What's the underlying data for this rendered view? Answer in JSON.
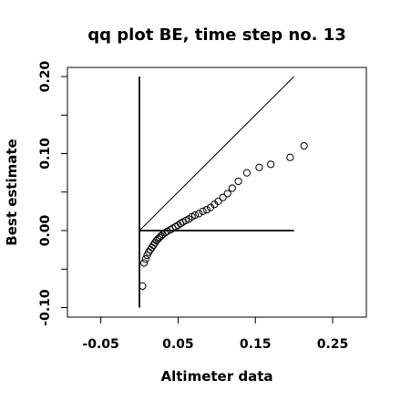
{
  "chart_data": {
    "type": "scatter",
    "title": "qq plot BE, time step no. 13",
    "xlabel": "Altimeter data",
    "ylabel": "Best estimate",
    "xlim": [
      -0.1,
      0.3
    ],
    "ylim": [
      -0.11,
      0.21
    ],
    "x_ticks": [
      -0.05,
      0.05,
      0.15,
      0.25
    ],
    "x_tick_labels": [
      "-0.05",
      "0.05",
      "0.15",
      "0.25"
    ],
    "y_ticks": [
      -0.1,
      0.0,
      0.1,
      0.2
    ],
    "y_tick_labels": [
      "-0.10",
      "0.00",
      "0.10",
      "0.20"
    ],
    "grid": false,
    "legend": "none",
    "reference_lines": [
      {
        "x": [
          0.0,
          0.2
        ],
        "y": [
          0.0,
          0.2
        ]
      },
      {
        "x": [
          0.0,
          0.2
        ],
        "y": [
          0.0,
          0.0
        ]
      },
      {
        "x": [
          0.0,
          0.0
        ],
        "y": [
          -0.1,
          0.2
        ]
      }
    ],
    "points": {
      "x": [
        0.004,
        0.006,
        0.008,
        0.01,
        0.012,
        0.014,
        0.016,
        0.018,
        0.02,
        0.022,
        0.024,
        0.026,
        0.028,
        0.03,
        0.033,
        0.036,
        0.04,
        0.043,
        0.047,
        0.05,
        0.053,
        0.056,
        0.06,
        0.064,
        0.068,
        0.072,
        0.077,
        0.082,
        0.087,
        0.092,
        0.097,
        0.102,
        0.108,
        0.114,
        0.12,
        0.128,
        0.139,
        0.155,
        0.17,
        0.195,
        0.213
      ],
      "y": [
        -0.072,
        -0.042,
        -0.037,
        -0.032,
        -0.028,
        -0.025,
        -0.022,
        -0.019,
        -0.016,
        -0.013,
        -0.011,
        -0.009,
        -0.007,
        -0.005,
        -0.003,
        -0.001,
        0.001,
        0.003,
        0.005,
        0.007,
        0.009,
        0.011,
        0.013,
        0.015,
        0.018,
        0.02,
        0.022,
        0.025,
        0.027,
        0.03,
        0.034,
        0.038,
        0.043,
        0.048,
        0.055,
        0.064,
        0.075,
        0.082,
        0.086,
        0.095,
        0.11
      ]
    }
  }
}
